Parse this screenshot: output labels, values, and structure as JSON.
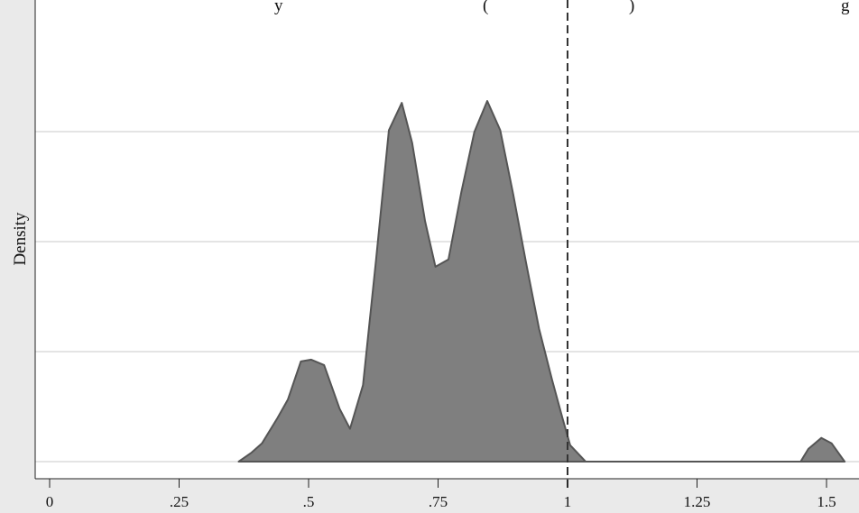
{
  "header": {
    "fragment_left": "y",
    "fragment_mid": "(",
    "fragment_right": ")",
    "fragment_end": "g"
  },
  "chart_data": {
    "type": "area",
    "ylabel": "Density",
    "xlim": [
      -0.05,
      1.56
    ],
    "ylim": [
      0,
      1
    ],
    "grid": true,
    "x_ticks": [
      0,
      0.25,
      0.5,
      0.75,
      1,
      1.25,
      1.5
    ],
    "x_tick_labels": [
      "0",
      ".25",
      ".5",
      ".75",
      "1",
      "1.25",
      "1.5"
    ],
    "reference_line": {
      "x": 1,
      "style": "dashed"
    },
    "series": [
      {
        "fill": "#7f7f7f",
        "x": [
          0.365,
          0.39,
          0.41,
          0.44,
          0.46,
          0.485,
          0.505,
          0.53,
          0.56,
          0.58,
          0.605,
          0.63,
          0.655,
          0.68,
          0.7,
          0.725,
          0.745,
          0.77,
          0.795,
          0.82,
          0.845,
          0.87,
          0.895,
          0.92,
          0.945,
          0.97,
          0.99,
          1.005,
          1.035,
          1.45,
          1.465,
          1.49,
          1.51,
          1.535
        ],
        "y": [
          0.0,
          0.025,
          0.05,
          0.12,
          0.17,
          0.275,
          0.28,
          0.265,
          0.145,
          0.09,
          0.21,
          0.55,
          0.91,
          0.985,
          0.875,
          0.66,
          0.535,
          0.555,
          0.74,
          0.905,
          0.99,
          0.91,
          0.735,
          0.545,
          0.365,
          0.225,
          0.12,
          0.045,
          0.0,
          0.0,
          0.035,
          0.065,
          0.05,
          0.0
        ]
      }
    ]
  }
}
